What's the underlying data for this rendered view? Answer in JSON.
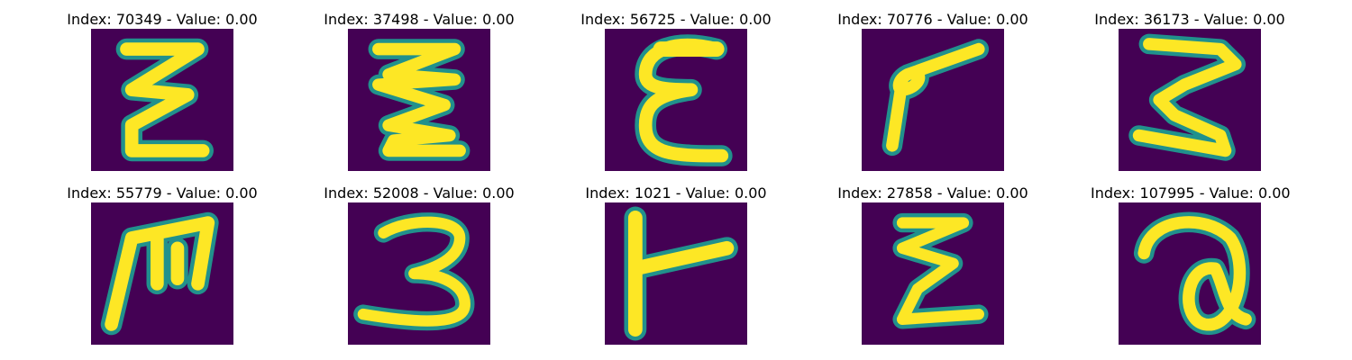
{
  "figure": {
    "background": "#ffffff",
    "image_bg": "#440154",
    "stroke_color": "#fde725",
    "edge_color": "#21918c",
    "panels": [
      {
        "title": "Index: 70349 - Value: 0.00",
        "glyph": "sigma-like-e"
      },
      {
        "title": "Index: 37498 - Value: 0.00",
        "glyph": "double-zigzag"
      },
      {
        "title": "Index: 56725 - Value: 0.00",
        "glyph": "epsilon-e"
      },
      {
        "title": "Index: 70776 - Value: 0.00",
        "glyph": "angled-p"
      },
      {
        "title": "Index: 36173 - Value: 0.00",
        "glyph": "three-like"
      },
      {
        "title": "Index: 55779 - Value: 0.00",
        "glyph": "m-like"
      },
      {
        "title": "Index: 52008 - Value: 0.00",
        "glyph": "three"
      },
      {
        "title": "Index: 1021 - Value: 0.00",
        "glyph": "t-side"
      },
      {
        "title": "Index: 27858 - Value: 0.00",
        "glyph": "sigma"
      },
      {
        "title": "Index: 107995 - Value: 0.00",
        "glyph": "a-like"
      }
    ]
  }
}
